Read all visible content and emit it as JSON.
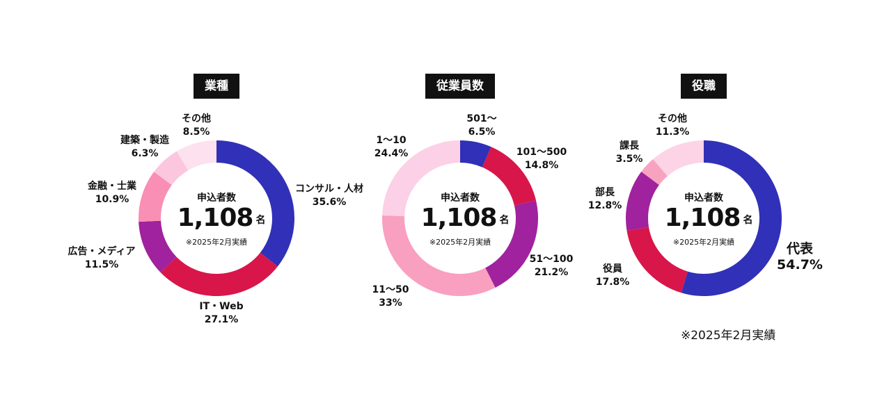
{
  "footnote": "※2025年2月実績",
  "center": {
    "label": "申込者数",
    "total": "1,108",
    "unit": "名",
    "note": "※2025年2月実績"
  },
  "chart_data": [
    {
      "type": "pie",
      "title": "業種",
      "categories": [
        "コンサル・人材",
        "IT・Web",
        "広告・メディア",
        "金融・士業",
        "建築・製造",
        "その他"
      ],
      "values": [
        35.6,
        27.1,
        11.5,
        10.9,
        6.3,
        8.5
      ],
      "value_labels": [
        "35.6%",
        "27.1%",
        "11.5%",
        "10.9%",
        "6.3%",
        "8.5%"
      ],
      "colors": [
        "#3030B8",
        "#D8164A",
        "#A0229E",
        "#F98FB4",
        "#FCC6DE",
        "#FDE1EE"
      ],
      "donut": true
    },
    {
      "type": "pie",
      "title": "従業員数",
      "categories": [
        "501〜",
        "101〜500",
        "51〜100",
        "11〜50",
        "1〜10"
      ],
      "values": [
        6.5,
        14.8,
        21.2,
        33,
        24.4
      ],
      "value_labels": [
        "6.5%",
        "14.8%",
        "21.2%",
        "33%",
        "24.4%"
      ],
      "colors": [
        "#3030B8",
        "#D8164A",
        "#A0229E",
        "#F99FC0",
        "#FCD0E6"
      ],
      "donut": true
    },
    {
      "type": "pie",
      "title": "役職",
      "categories": [
        "代表",
        "役員",
        "部長",
        "課長",
        "その他"
      ],
      "values": [
        54.7,
        17.8,
        12.8,
        3.5,
        11.3
      ],
      "value_labels": [
        "54.7%",
        "17.8%",
        "12.8%",
        "3.5%",
        "11.3%"
      ],
      "colors": [
        "#3030B8",
        "#D8164A",
        "#A0229E",
        "#F7A3C0",
        "#FDD3E6"
      ],
      "donut": true
    }
  ]
}
